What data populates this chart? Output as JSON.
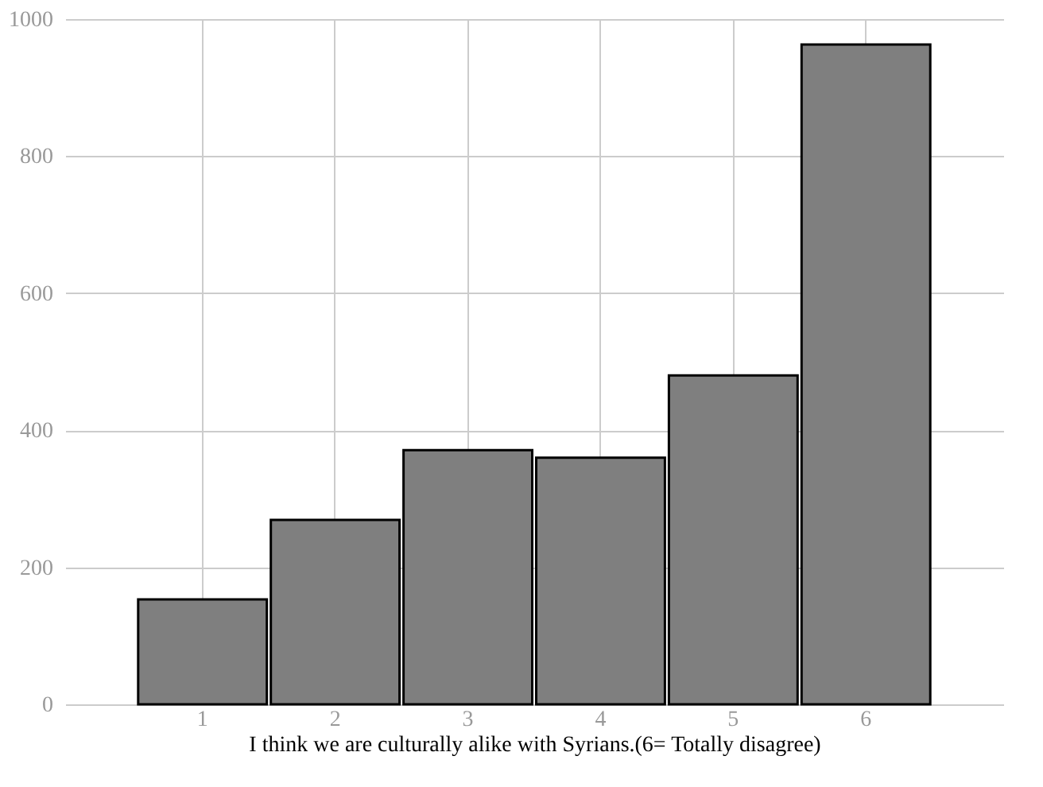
{
  "chart_data": {
    "type": "bar",
    "xlabel": "I think we are culturally alike with Syrians.(6= Totally disagree)",
    "categories": [
      "1",
      "2",
      "3",
      "4",
      "5",
      "6"
    ],
    "values": [
      153,
      269,
      371,
      360,
      480,
      963
    ],
    "color": "#7f7f7f",
    "ylim": [
      0,
      1000
    ],
    "yticks": [
      0,
      200,
      400,
      600,
      800,
      1000
    ],
    "grid": true
  }
}
